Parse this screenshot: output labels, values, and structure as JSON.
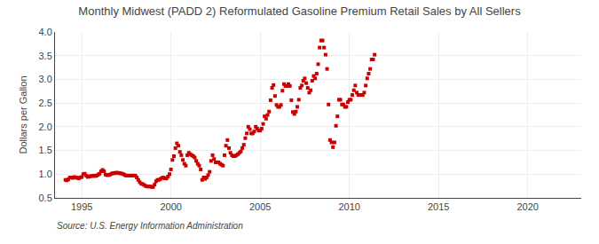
{
  "chart_data": {
    "type": "scatter",
    "title": "Monthly Midwest (PADD 2) Reformulated Gasoline Premium Retail Sales by All Sellers",
    "ylabel": "Dollars per Gallon",
    "annotations": [
      "Source: U.S. Energy Information Administration"
    ],
    "color": "#cc0000",
    "marker": "square",
    "grid": true,
    "xlim": [
      1993.5,
      2023.0
    ],
    "ylim": [
      0.5,
      4.0
    ],
    "xticks": [
      1995,
      2000,
      2005,
      2010,
      2015,
      2020
    ],
    "yticks": [
      0.5,
      {
        "value": 1.0,
        "label": "1.0"
      },
      1.5,
      {
        "value": 2.0,
        "label": "2.0"
      },
      2.5,
      {
        "value": 3.0,
        "label": "3.0"
      },
      3.5,
      {
        "value": 4.0,
        "label": "4.0"
      }
    ],
    "x": [
      1994.083,
      1994.167,
      1994.25,
      1994.333,
      1994.417,
      1994.5,
      1994.583,
      1994.667,
      1994.75,
      1994.833,
      1994.917,
      1995.0,
      1995.083,
      1995.167,
      1995.25,
      1995.333,
      1995.417,
      1995.5,
      1995.583,
      1995.667,
      1995.75,
      1995.833,
      1995.917,
      1996.0,
      1996.083,
      1996.167,
      1996.25,
      1996.333,
      1996.417,
      1996.5,
      1996.583,
      1996.667,
      1996.75,
      1996.833,
      1996.917,
      1997.0,
      1997.083,
      1997.167,
      1997.25,
      1997.333,
      1997.417,
      1997.5,
      1997.583,
      1997.667,
      1997.75,
      1997.833,
      1997.917,
      1998.0,
      1998.083,
      1998.167,
      1998.25,
      1998.333,
      1998.417,
      1998.5,
      1998.583,
      1998.667,
      1998.75,
      1998.833,
      1998.917,
      1999.0,
      1999.083,
      1999.167,
      1999.25,
      1999.333,
      1999.417,
      1999.5,
      1999.583,
      1999.667,
      1999.75,
      1999.833,
      1999.917,
      2000.0,
      2000.083,
      2000.167,
      2000.25,
      2000.333,
      2000.417,
      2000.5,
      2000.583,
      2000.667,
      2000.75,
      2000.833,
      2000.917,
      2001.0,
      2001.083,
      2001.167,
      2001.25,
      2001.333,
      2001.417,
      2001.5,
      2001.583,
      2001.667,
      2001.75,
      2001.833,
      2001.917,
      2002.0,
      2002.083,
      2002.167,
      2002.25,
      2002.333,
      2002.417,
      2002.5,
      2002.583,
      2002.667,
      2002.75,
      2002.833,
      2002.917,
      2003.0,
      2003.083,
      2003.167,
      2003.25,
      2003.333,
      2003.417,
      2003.5,
      2003.583,
      2003.667,
      2003.75,
      2003.833,
      2003.917,
      2004.0,
      2004.083,
      2004.167,
      2004.25,
      2004.333,
      2004.417,
      2004.5,
      2004.583,
      2004.667,
      2004.75,
      2004.833,
      2004.917,
      2005.0,
      2005.083,
      2005.167,
      2005.25,
      2005.333,
      2005.417,
      2005.5,
      2005.583,
      2005.667,
      2005.75,
      2005.833,
      2005.917,
      2006.0,
      2006.083,
      2006.167,
      2006.25,
      2006.333,
      2006.417,
      2006.5,
      2006.583,
      2006.667,
      2006.75,
      2006.833,
      2006.917,
      2007.0,
      2007.083,
      2007.167,
      2007.25,
      2007.333,
      2007.417,
      2007.5,
      2007.583,
      2007.667,
      2007.75,
      2007.833,
      2007.917,
      2008.0,
      2008.083,
      2008.167,
      2008.25,
      2008.333,
      2008.417,
      2008.5,
      2008.583,
      2008.667,
      2008.75,
      2008.833,
      2008.917,
      2009.0,
      2009.083,
      2009.167,
      2009.25,
      2009.333,
      2009.417,
      2009.5,
      2009.583,
      2009.667,
      2009.75,
      2009.833,
      2009.917,
      2010.0,
      2010.083,
      2010.167,
      2010.25,
      2010.333,
      2010.417,
      2010.5,
      2010.583,
      2010.667,
      2010.75,
      2010.833,
      2010.917,
      2011.0,
      2011.083,
      2011.167,
      2011.25,
      2011.333,
      2011.417
    ],
    "values": [
      0.88,
      0.87,
      0.89,
      0.93,
      0.93,
      0.92,
      0.94,
      0.93,
      0.92,
      0.91,
      0.93,
      0.94,
      1.0,
      1.01,
      0.97,
      0.94,
      0.95,
      0.96,
      0.96,
      0.97,
      0.96,
      0.97,
      0.99,
      1.01,
      1.06,
      1.09,
      1.06,
      0.99,
      0.98,
      0.98,
      0.99,
      1.01,
      1.02,
      1.02,
      1.03,
      1.03,
      1.02,
      1.02,
      1.01,
      1.0,
      0.98,
      0.97,
      0.97,
      0.97,
      0.97,
      0.97,
      0.97,
      0.97,
      0.93,
      0.88,
      0.83,
      0.8,
      0.79,
      0.77,
      0.75,
      0.74,
      0.74,
      0.74,
      0.73,
      0.73,
      0.78,
      0.85,
      0.88,
      0.88,
      0.9,
      0.92,
      0.93,
      0.91,
      0.91,
      0.95,
      1.0,
      1.1,
      1.3,
      1.38,
      1.55,
      1.65,
      1.6,
      1.47,
      1.4,
      1.3,
      1.22,
      1.18,
      1.4,
      1.45,
      1.42,
      1.4,
      1.38,
      1.35,
      1.28,
      1.22,
      1.18,
      1.1,
      0.88,
      0.93,
      0.9,
      0.93,
      0.98,
      1.05,
      1.28,
      1.4,
      1.32,
      1.25,
      1.25,
      1.25,
      1.22,
      1.2,
      1.18,
      1.4,
      1.6,
      1.72,
      1.55,
      1.45,
      1.4,
      1.38,
      1.38,
      1.4,
      1.42,
      1.45,
      1.48,
      1.55,
      1.62,
      1.76,
      1.86,
      2.0,
      1.95,
      1.86,
      1.86,
      1.9,
      2.0,
      1.96,
      1.92,
      1.92,
      1.96,
      2.06,
      2.22,
      2.17,
      2.25,
      2.32,
      2.56,
      2.82,
      2.88,
      2.65,
      2.46,
      2.42,
      2.42,
      2.46,
      2.76,
      2.9,
      2.86,
      2.86,
      2.9,
      2.86,
      2.56,
      2.31,
      2.27,
      2.32,
      2.42,
      2.57,
      2.82,
      2.87,
      2.97,
      3.02,
      2.92,
      2.82,
      2.72,
      2.77,
      2.97,
      3.07,
      3.02,
      3.12,
      3.32,
      3.67,
      3.82,
      3.82,
      3.67,
      3.52,
      3.22,
      2.47,
      1.72,
      1.67,
      1.57,
      1.67,
      2.02,
      2.22,
      2.57,
      2.57,
      2.47,
      2.47,
      2.42,
      2.42,
      2.52,
      2.57,
      2.57,
      2.67,
      2.77,
      2.87,
      2.72,
      2.67,
      2.67,
      2.67,
      2.67,
      2.72,
      2.87,
      3.02,
      3.12,
      3.22,
      3.42,
      3.42,
      3.52
    ]
  }
}
